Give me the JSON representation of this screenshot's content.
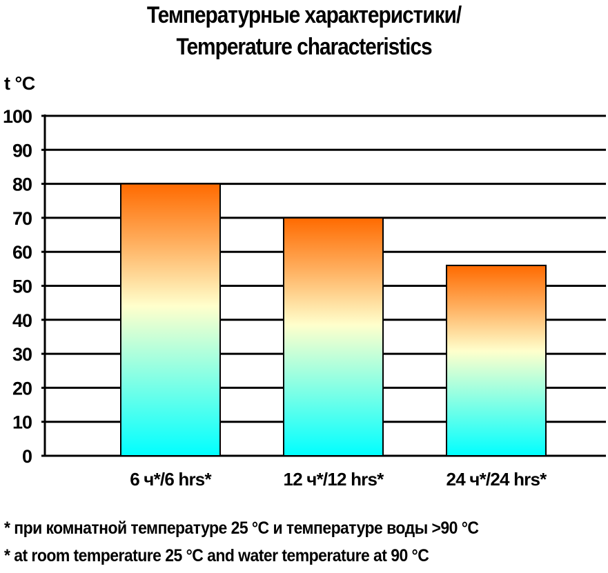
{
  "chart_data": {
    "type": "bar",
    "title": "Температурные характеристики/",
    "subtitle": "Temperature characteristics",
    "ylabel": "t °C",
    "xlabel": "",
    "categories": [
      "6 ч*/6 hrs*",
      "12 ч*/12 hrs*",
      "24 ч*/24 hrs*"
    ],
    "values": [
      80,
      70,
      56
    ],
    "ylim": [
      0,
      100
    ],
    "yticks": [
      0,
      10,
      20,
      30,
      40,
      50,
      60,
      70,
      80,
      90,
      100
    ],
    "grid": true,
    "legend": "none",
    "colors": {
      "bar_top": "#ff6a00",
      "bar_upper": "#ffb060",
      "bar_middle": "#ffffcc",
      "bar_bottom": "#00ffff",
      "grid": "#000000"
    }
  },
  "footnotes": {
    "ru": "* при комнатной температуре 25 °С и температуре воды >90 °С",
    "en": "* at room temperature 25 °C and water temperature at 90 °C"
  }
}
